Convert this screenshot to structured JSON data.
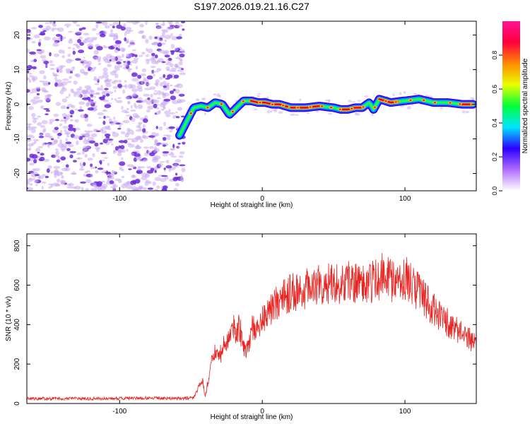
{
  "title": "S197.2026.019.21.16.C27",
  "colors": {
    "snr_line": "#e8221e",
    "blob_light": "#c9a8f0",
    "blob_dark": "#6a2bd8",
    "frame": "#000000"
  },
  "chart_data": [
    {
      "type": "heatmap",
      "name": "spectrogram",
      "xlabel": "Height of straight line (km)",
      "ylabel": "Frequency (Hz)",
      "xlim": [
        -165,
        150
      ],
      "ylim": [
        -25,
        24
      ],
      "x_ticks": [
        -100,
        0,
        100
      ],
      "y_ticks": [
        20,
        10,
        0,
        -10,
        -20
      ],
      "noise_region_x": [
        -165,
        -55
      ],
      "ridge": {
        "x": [
          -58,
          -53,
          -48,
          -43,
          -38,
          -33,
          -28,
          -23,
          -18,
          -13,
          -8,
          -3,
          2,
          7,
          12,
          20,
          30,
          40,
          50,
          55,
          60,
          65,
          70,
          75,
          78,
          82,
          90,
          100,
          110,
          120,
          130,
          140,
          148
        ],
        "y": [
          -9,
          -5,
          -1,
          -0.5,
          -1,
          0.5,
          0,
          -3,
          -1,
          1,
          1,
          0.5,
          0.5,
          0,
          0,
          -1,
          -1,
          -0.5,
          -1,
          -1.5,
          -1.5,
          -1,
          -1,
          0.5,
          -1.5,
          1.5,
          0.5,
          1,
          1.5,
          0.5,
          0.5,
          0,
          0
        ]
      },
      "hot_segments": [
        [
          -8,
          18
        ],
        [
          20,
          40
        ],
        [
          55,
          70
        ],
        [
          82,
          95
        ],
        [
          140,
          148
        ]
      ],
      "colorbar": {
        "label": "Normalized spectral amplitude",
        "range": [
          0,
          1
        ],
        "ticks": [
          "0.0",
          "0.2",
          "0.4",
          "0.6",
          "0.8"
        ],
        "colormap": [
          "#ffffff",
          "#b06cff",
          "#2b00ff",
          "#00e5ff",
          "#00ff3a",
          "#e8ff00",
          "#ff8a00",
          "#ff003c",
          "#ff1493"
        ]
      }
    },
    {
      "type": "line",
      "name": "snr",
      "xlabel": "Height of straight line (km)",
      "ylabel": "SNR (10 * v/v)",
      "xlim": [
        -165,
        150
      ],
      "ylim": [
        0,
        860
      ],
      "x_ticks": [
        -100,
        0,
        100
      ],
      "y_ticks": [
        0,
        200,
        400,
        600,
        800
      ],
      "x": [
        -165,
        -140,
        -110,
        -80,
        -60,
        -48,
        -45,
        -42,
        -40,
        -37,
        -35,
        -32,
        -29,
        -26,
        -23,
        -20,
        -18,
        -16,
        -14,
        -12,
        -10,
        -7,
        -4,
        0,
        5,
        10,
        20,
        30,
        40,
        50,
        60,
        70,
        80,
        85,
        90,
        95,
        100,
        105,
        110,
        115,
        120,
        125,
        130,
        135,
        140,
        145,
        150
      ],
      "y": [
        25,
        25,
        25,
        28,
        25,
        28,
        80,
        120,
        35,
        150,
        230,
        280,
        250,
        320,
        330,
        380,
        340,
        400,
        300,
        270,
        280,
        390,
        360,
        420,
        470,
        510,
        560,
        580,
        600,
        610,
        620,
        610,
        620,
        660,
        630,
        600,
        640,
        600,
        560,
        520,
        480,
        440,
        410,
        380,
        350,
        330,
        300
      ]
    }
  ]
}
